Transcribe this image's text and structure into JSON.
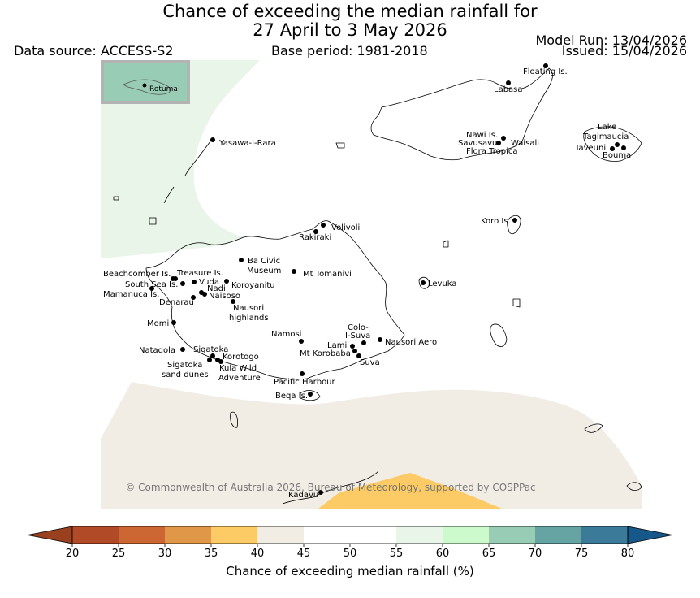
{
  "header": {
    "title_line1": "Chance of exceeding the median rainfall for",
    "title_line2": "27 April to 3 May 2026",
    "data_source": "Data source: ACCESS-S2",
    "base_period": "Base period: 1981-2018",
    "model_run": "Model Run: 13/04/2026",
    "issued": "Issued: 15/04/2026"
  },
  "map": {
    "inset_label": "Rotuma",
    "copyright": "© Commonwealth of Australia 2026, Bureau of Meteorology, supported by COSPPac",
    "places": [
      "Floating Is.",
      "Labasa",
      "Yasawa-I-Rara",
      "Nawi Is.",
      "Savusavu",
      "Waisali",
      "Flora Tropica",
      "Lake",
      "Tagimaucia",
      "Taveuni",
      "Bouma",
      "Koro Is.",
      "Volivoli",
      "Rakiraki",
      "Ba Civic",
      "Museum",
      "Mt Tomanivi",
      "Beachcomber Is.",
      "Treasure Is.",
      "South Sea Is.",
      "Vuda",
      "Koroyanitu",
      "Nadi",
      "Mamanuca Is.",
      "Naisoso",
      "Denarau",
      "Nausori",
      "highlands",
      "Levuka",
      "Momi",
      "Namosi",
      "Colo-",
      "I-Suva",
      "Lami",
      "Nausori Aero",
      "Mt Korobaba",
      "Suva",
      "Natadola",
      "Sigatoka",
      "Korotogo",
      "Sigatoka",
      "sand dunes",
      "Kula Wild",
      "Adventure",
      "Pacific Harbour",
      "Beqa Is.",
      "Kadavu"
    ]
  },
  "colorbar": {
    "title": "Chance of exceeding median rainfall (%)",
    "ticks": [
      "20",
      "25",
      "30",
      "35",
      "40",
      "45",
      "50",
      "55",
      "60",
      "65",
      "70",
      "75",
      "80"
    ],
    "colors": [
      "#b04a27",
      "#cc6633",
      "#e09848",
      "#fccb66",
      "#f1ece4",
      "#ffffff",
      "#ffffff",
      "#eaf5e9",
      "#ccfacc",
      "#99ccb4",
      "#66a3a3",
      "#3b7a99"
    ],
    "under_color": "#99401e",
    "over_color": "#16588a"
  }
}
